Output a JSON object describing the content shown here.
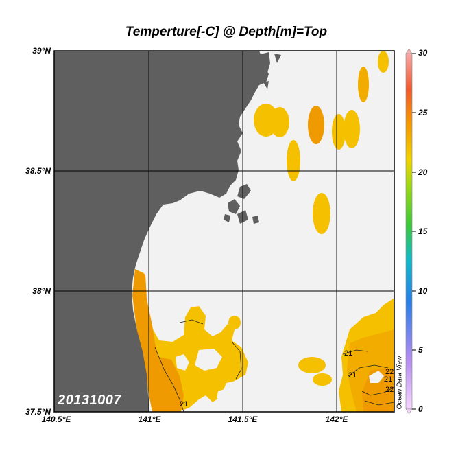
{
  "title": "Temperture[-C] @ Depth[m]=Top",
  "date_label": "20131007",
  "watermark": "Ocean Data View",
  "map": {
    "lon_range": [
      140.5,
      142.3
    ],
    "lat_range": [
      37.5,
      39.0
    ],
    "lon_ticks": [
      {
        "value": 140.5,
        "label": "140.5°E"
      },
      {
        "value": 141.0,
        "label": "141°E"
      },
      {
        "value": 141.5,
        "label": "141.5°E"
      },
      {
        "value": 142.0,
        "label": "142°E"
      }
    ],
    "lat_ticks": [
      {
        "value": 39.0,
        "label": "39°N"
      },
      {
        "value": 38.5,
        "label": "38.5°N"
      },
      {
        "value": 38.0,
        "label": "38°N"
      },
      {
        "value": 37.5,
        "label": "37.5°N"
      }
    ],
    "contour_labels": [
      "21",
      "21",
      "21",
      "22",
      "22",
      "21"
    ]
  },
  "colorbar": {
    "min": 0,
    "max": 30,
    "ticks": [
      "30",
      "25",
      "20",
      "15",
      "10",
      "5",
      "0"
    ]
  },
  "colors": {
    "land": "#5f5f5f",
    "ocean_nodata": "#f2f2f2",
    "warm_21": "#f5c000",
    "warm_22": "#f2a300",
    "warm_23": "#ee8a00"
  }
}
